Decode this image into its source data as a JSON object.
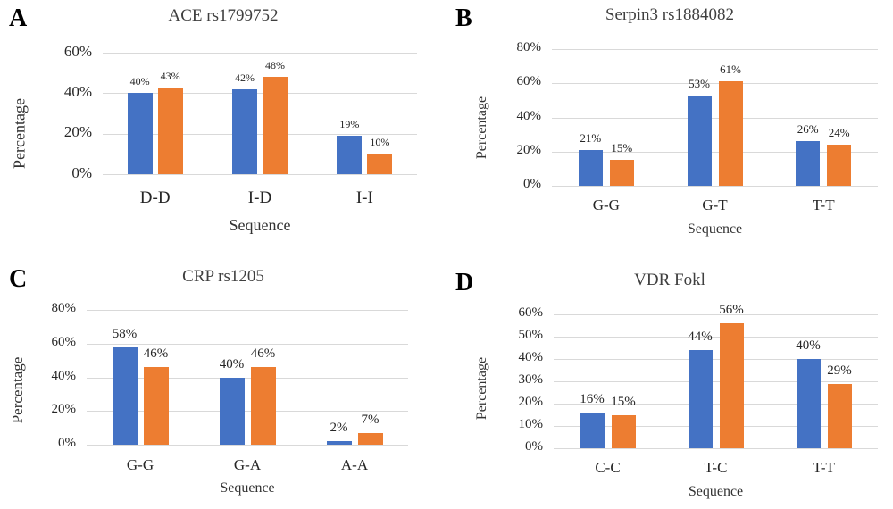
{
  "figure": {
    "background": "#ffffff",
    "gridline_color": "#d9d9d9",
    "bar_colors": [
      "#4472c4",
      "#ed7d31"
    ]
  },
  "chart_data": [
    {
      "type": "bar",
      "panel": "A",
      "title": "ACE rs1799752",
      "xlabel": "Sequence",
      "ylabel": "Percentage",
      "categories": [
        "D-D",
        "I-D",
        "I-I"
      ],
      "series": [
        {
          "color": "#4472c4",
          "values": [
            40,
            42,
            19
          ],
          "labels": [
            "40%",
            "42%",
            "19%"
          ]
        },
        {
          "color": "#ed7d31",
          "values": [
            43,
            48,
            10
          ],
          "labels": [
            "43%",
            "48%",
            "10%"
          ]
        }
      ],
      "ylim": [
        0,
        60
      ],
      "yticks": [
        60,
        40,
        20,
        0
      ],
      "ytick_labels": [
        "60%",
        "40%",
        "20%",
        "0%"
      ],
      "grid": true,
      "legend": "none"
    },
    {
      "type": "bar",
      "panel": "B",
      "title": "Serpin3 rs1884082",
      "xlabel": "Sequence",
      "ylabel": "Percentage",
      "categories": [
        "G-G",
        "G-T",
        "T-T"
      ],
      "series": [
        {
          "color": "#4472c4",
          "values": [
            21,
            53,
            26
          ],
          "labels": [
            "21%",
            "53%",
            "26%"
          ]
        },
        {
          "color": "#ed7d31",
          "values": [
            15,
            61,
            24
          ],
          "labels": [
            "15%",
            "61%",
            "24%"
          ]
        }
      ],
      "ylim": [
        0,
        80
      ],
      "yticks": [
        80,
        60,
        40,
        20,
        0
      ],
      "ytick_labels": [
        "80%",
        "60%",
        "40%",
        "20%",
        "0%"
      ],
      "grid": true,
      "legend": "none"
    },
    {
      "type": "bar",
      "panel": "C",
      "title": "CRP rs1205",
      "xlabel": "Sequence",
      "ylabel": "Percentage",
      "categories": [
        "G-G",
        "G-A",
        "A-A"
      ],
      "series": [
        {
          "color": "#4472c4",
          "values": [
            58,
            40,
            2
          ],
          "labels": [
            "58%",
            "40%",
            "2%"
          ]
        },
        {
          "color": "#ed7d31",
          "values": [
            46,
            46,
            7
          ],
          "labels": [
            "46%",
            "46%",
            "7%"
          ]
        }
      ],
      "ylim": [
        0,
        80
      ],
      "yticks": [
        80,
        60,
        40,
        20,
        0
      ],
      "ytick_labels": [
        "80%",
        "60%",
        "40%",
        "20%",
        "0%"
      ],
      "grid": true,
      "legend": "none"
    },
    {
      "type": "bar",
      "panel": "D",
      "title": "VDR Fokl",
      "xlabel": "Sequence",
      "ylabel": "Percentage",
      "categories": [
        "C-C",
        "T-C",
        "T-T"
      ],
      "series": [
        {
          "color": "#4472c4",
          "values": [
            16,
            44,
            40
          ],
          "labels": [
            "16%",
            "44%",
            "40%"
          ]
        },
        {
          "color": "#ed7d31",
          "values": [
            15,
            56,
            29
          ],
          "labels": [
            "15%",
            "56%",
            "29%"
          ]
        }
      ],
      "ylim": [
        0,
        60
      ],
      "yticks": [
        60,
        50,
        40,
        30,
        20,
        10,
        0
      ],
      "ytick_labels": [
        "60%",
        "50%",
        "40%",
        "30%",
        "20%",
        "10%",
        "0%"
      ],
      "grid": true,
      "legend": "none"
    }
  ]
}
